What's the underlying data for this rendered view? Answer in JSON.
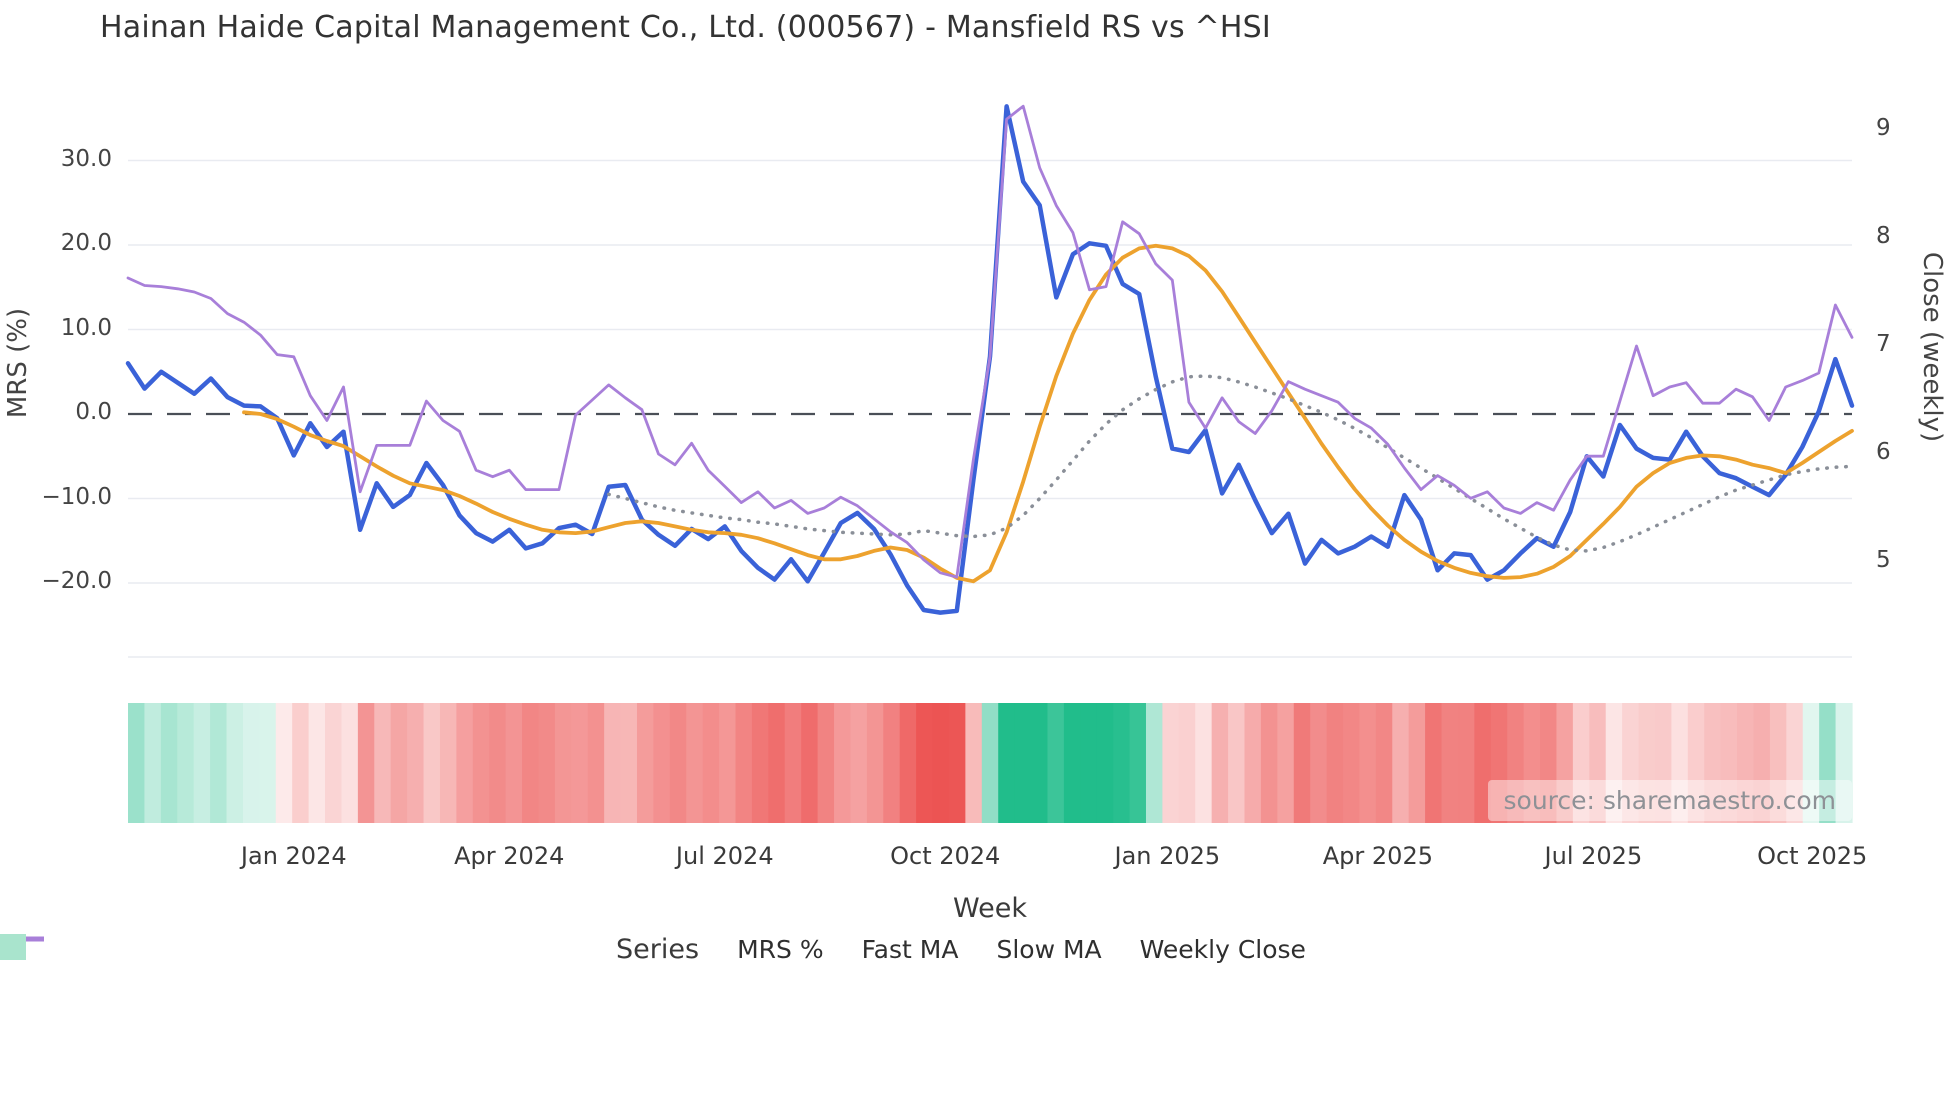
{
  "title": "Hainan Haide Capital Management Co., Ltd. (000567) - Mansfield RS vs ^HSI",
  "source_note": "source: sharemaestro.com",
  "colors": {
    "mrs": "#3a62d8",
    "fast_ma": "#eda22e",
    "slow_ma": "#8a8f98",
    "weekly_close": "#a87fd9",
    "heatmap_green": "#21bd8b",
    "heatmap_red": "#ec5150",
    "legend_square": "#a9e4cd",
    "grid": "#e9ebf1",
    "zero_line": "#4a4f57"
  },
  "axes": {
    "left": {
      "label": "MRS (%)",
      "ticks": [
        {
          "value": 30,
          "label": "30.0"
        },
        {
          "value": 20,
          "label": "20.0"
        },
        {
          "value": 10,
          "label": "10.0"
        },
        {
          "value": 0,
          "label": "0.0"
        },
        {
          "value": -10,
          "label": "−10.0"
        },
        {
          "value": -20,
          "label": "−20.0"
        }
      ]
    },
    "right": {
      "label": "Close (weekly)",
      "ticks": [
        {
          "value": 9,
          "label": "9"
        },
        {
          "value": 8,
          "label": "8"
        },
        {
          "value": 7,
          "label": "7"
        },
        {
          "value": 6,
          "label": "6"
        },
        {
          "value": 5,
          "label": "5"
        }
      ]
    },
    "x": {
      "label": "Week",
      "ticks": [
        {
          "week": 10.0,
          "label": "Jan 2024"
        },
        {
          "week": 23.0,
          "label": "Apr 2024"
        },
        {
          "week": 36.0,
          "label": "Jul 2024"
        },
        {
          "week": 49.3,
          "label": "Oct 2024"
        },
        {
          "week": 62.7,
          "label": "Jan 2025"
        },
        {
          "week": 75.4,
          "label": "Apr 2025"
        },
        {
          "week": 88.4,
          "label": "Jul 2025"
        },
        {
          "week": 101.6,
          "label": "Oct 2025"
        }
      ]
    }
  },
  "legend": {
    "title": "Series",
    "items": [
      {
        "label": "MRS %",
        "style": "line",
        "color": "#3a62d8"
      },
      {
        "label": "Fast MA",
        "style": "line",
        "color": "#eda22e"
      },
      {
        "label": "Slow MA",
        "style": "dotted",
        "color": "#8a8f98"
      },
      {
        "label": "Weekly Close",
        "style": "line",
        "color": "#a87fd9"
      },
      {
        "label": "",
        "style": "square",
        "color": "#a9e4cd"
      }
    ]
  },
  "chart_data": {
    "type": "line",
    "title": "Hainan Haide Capital Management Co., Ltd. (000567) - Mansfield RS vs ^HSI",
    "xlabel": "Week",
    "ylabel_left": "MRS (%)",
    "ylabel_right": "Close (weekly)",
    "x_start": "2023-10-23",
    "x_step_days": 7,
    "n_weeks": 105,
    "ylim_left": [
      -27,
      37.5
    ],
    "ylim_right": [
      4.3,
      9.3
    ],
    "grid": true,
    "zero_dashed_line": 0,
    "legend_position": "bottom",
    "series": [
      {
        "name": "MRS %",
        "axis": "left",
        "color": "#3a62d8",
        "width": 4.5,
        "dash": "solid",
        "values": [
          6.0,
          3.0,
          5.0,
          3.7,
          2.4,
          4.2,
          2.0,
          1.0,
          0.9,
          -0.5,
          -4.9,
          -1.1,
          -3.9,
          -2.1,
          -13.7,
          -8.2,
          -11.0,
          -9.6,
          -5.8,
          -8.4,
          -12.0,
          -14.1,
          -15.1,
          -13.7,
          -15.9,
          -15.3,
          -13.5,
          -13.1,
          -14.2,
          -8.6,
          -8.4,
          -12.5,
          -14.3,
          -15.6,
          -13.6,
          -14.8,
          -13.3,
          -16.2,
          -18.2,
          -19.6,
          -17.2,
          -19.8,
          -16.4,
          -12.9,
          -11.7,
          -13.6,
          -16.6,
          -20.3,
          -23.2,
          -23.5,
          -23.3,
          -7.8,
          6.8,
          36.4,
          27.5,
          24.7,
          13.8,
          18.9,
          20.2,
          19.9,
          15.4,
          14.2,
          4.4,
          -4.1,
          -4.5,
          -1.9,
          -9.4,
          -6.0,
          -10.2,
          -14.1,
          -11.8,
          -17.7,
          -14.9,
          -16.5,
          -15.7,
          -14.5,
          -15.7,
          -9.6,
          -12.5,
          -18.5,
          -16.5,
          -16.7,
          -19.6,
          -18.5,
          -16.5,
          -14.7,
          -15.7,
          -11.6,
          -5.0,
          -7.4,
          -1.3,
          -4.1,
          -5.2,
          -5.4,
          -2.1,
          -5.0,
          -7.0,
          -7.6,
          -8.6,
          -9.6,
          -7.2,
          -3.9,
          0.3,
          6.5,
          1.0
        ]
      },
      {
        "name": "Fast MA",
        "axis": "left",
        "color": "#eda22e",
        "width": 3.8,
        "dash": "solid",
        "values": [
          null,
          null,
          null,
          null,
          null,
          null,
          null,
          0.2,
          0.0,
          -0.6,
          -1.5,
          -2.5,
          -3.2,
          -3.8,
          -5.0,
          -6.2,
          -7.3,
          -8.2,
          -8.6,
          -9.0,
          -9.7,
          -10.6,
          -11.6,
          -12.4,
          -13.1,
          -13.7,
          -14.0,
          -14.1,
          -13.9,
          -13.4,
          -12.9,
          -12.7,
          -12.9,
          -13.3,
          -13.7,
          -14.0,
          -14.1,
          -14.3,
          -14.7,
          -15.3,
          -16.0,
          -16.7,
          -17.2,
          -17.2,
          -16.8,
          -16.2,
          -15.8,
          -16.1,
          -17.0,
          -18.3,
          -19.4,
          -19.8,
          -18.5,
          -14.0,
          -8.0,
          -1.5,
          4.5,
          9.5,
          13.5,
          16.5,
          18.5,
          19.6,
          19.9,
          19.6,
          18.7,
          17.0,
          14.5,
          11.5,
          8.5,
          5.5,
          2.5,
          -0.5,
          -3.5,
          -6.3,
          -8.9,
          -11.2,
          -13.2,
          -14.9,
          -16.3,
          -17.4,
          -18.2,
          -18.8,
          -19.2,
          -19.4,
          -19.3,
          -18.9,
          -18.1,
          -16.8,
          -14.9,
          -13.0,
          -11.0,
          -8.6,
          -7.0,
          -5.8,
          -5.2,
          -4.9,
          -5.0,
          -5.4,
          -6.0,
          -6.4,
          -7.0,
          -5.8,
          -4.5,
          -3.2,
          -2.0
        ]
      },
      {
        "name": "Slow MA",
        "axis": "left",
        "color": "#8a8f98",
        "width": 3.5,
        "dash": "dotted",
        "values": [
          null,
          null,
          null,
          null,
          null,
          null,
          null,
          null,
          null,
          null,
          null,
          null,
          null,
          null,
          null,
          null,
          null,
          null,
          null,
          null,
          null,
          null,
          null,
          null,
          null,
          null,
          null,
          null,
          null,
          -9.5,
          -10.0,
          -10.5,
          -11.0,
          -11.4,
          -11.7,
          -12.0,
          -12.3,
          -12.5,
          -12.8,
          -13.0,
          -13.3,
          -13.6,
          -13.8,
          -14.0,
          -14.1,
          -14.2,
          -14.3,
          -14.2,
          -13.8,
          -14.1,
          -14.4,
          -14.5,
          -14.3,
          -13.5,
          -12.0,
          -10.0,
          -7.8,
          -5.5,
          -3.2,
          -1.2,
          0.5,
          1.8,
          2.9,
          3.8,
          4.4,
          4.5,
          4.3,
          3.8,
          3.2,
          2.5,
          1.8,
          1.0,
          0.2,
          -0.7,
          -1.7,
          -2.8,
          -4.0,
          -5.2,
          -6.4,
          -7.6,
          -8.8,
          -10.0,
          -11.2,
          -12.4,
          -13.5,
          -14.6,
          -15.5,
          -16.1,
          -16.2,
          -15.8,
          -15.1,
          -14.3,
          -13.4,
          -12.5,
          -11.6,
          -10.7,
          -9.8,
          -9.0,
          -8.4,
          -7.8,
          -7.2,
          -6.8,
          -6.5,
          -6.3,
          -6.2
        ]
      },
      {
        "name": "Weekly Close",
        "axis": "right",
        "color": "#a87fd9",
        "width": 2.8,
        "dash": "solid",
        "values": [
          7.63,
          7.56,
          7.55,
          7.53,
          7.5,
          7.44,
          7.3,
          7.22,
          7.1,
          6.92,
          6.9,
          6.54,
          6.31,
          6.62,
          5.65,
          6.08,
          6.08,
          6.08,
          6.49,
          6.31,
          6.21,
          5.85,
          5.79,
          5.85,
          5.67,
          5.67,
          5.67,
          6.36,
          6.5,
          6.64,
          6.52,
          6.41,
          6.0,
          5.9,
          6.1,
          5.85,
          5.7,
          5.55,
          5.65,
          5.5,
          5.57,
          5.45,
          5.5,
          5.6,
          5.52,
          5.4,
          5.28,
          5.18,
          5.02,
          4.9,
          4.86,
          5.95,
          6.9,
          9.1,
          9.22,
          8.65,
          8.3,
          8.05,
          7.52,
          7.55,
          8.15,
          8.04,
          7.76,
          7.61,
          6.48,
          6.24,
          6.52,
          6.3,
          6.19,
          6.4,
          6.67,
          6.6,
          6.54,
          6.48,
          6.33,
          6.24,
          6.09,
          5.87,
          5.67,
          5.8,
          5.71,
          5.59,
          5.65,
          5.5,
          5.45,
          5.55,
          5.48,
          5.76,
          5.98,
          5.98,
          6.49,
          7.0,
          6.54,
          6.62,
          6.66,
          6.47,
          6.47,
          6.6,
          6.53,
          6.31,
          6.62,
          6.68,
          6.75,
          7.38,
          7.08
        ]
      }
    ],
    "heatmap": {
      "source_series": "MRS %",
      "positive_color": "#21bd8b",
      "negative_color": "#ec5150",
      "positive_saturation_at": 16,
      "negative_saturation_at": 24
    }
  }
}
